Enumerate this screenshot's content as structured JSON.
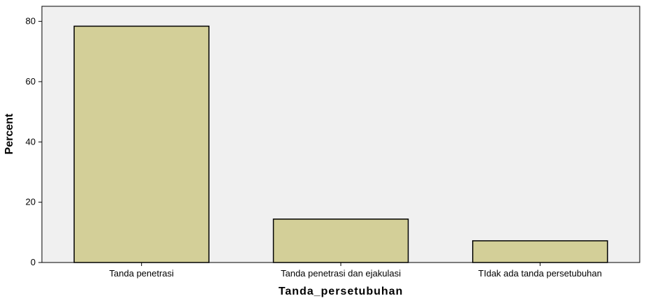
{
  "chart_data": {
    "type": "bar",
    "categories": [
      "Tanda penetrasi",
      "Tanda penetrasi dan ejakulasi",
      "TIdak ada tanda persetubuhan"
    ],
    "values": [
      78.4,
      14.4,
      7.2
    ],
    "title": "",
    "xlabel": "Tanda_persetubuhan",
    "ylabel": "Percent",
    "ylim": [
      0,
      85
    ],
    "yticks": [
      0,
      20,
      40,
      60,
      80
    ],
    "grid": false,
    "colors": {
      "bar_fill": "#d3cf98",
      "bar_stroke": "#000000",
      "plot_background": "#f0f0f0",
      "axis": "#000000"
    }
  }
}
